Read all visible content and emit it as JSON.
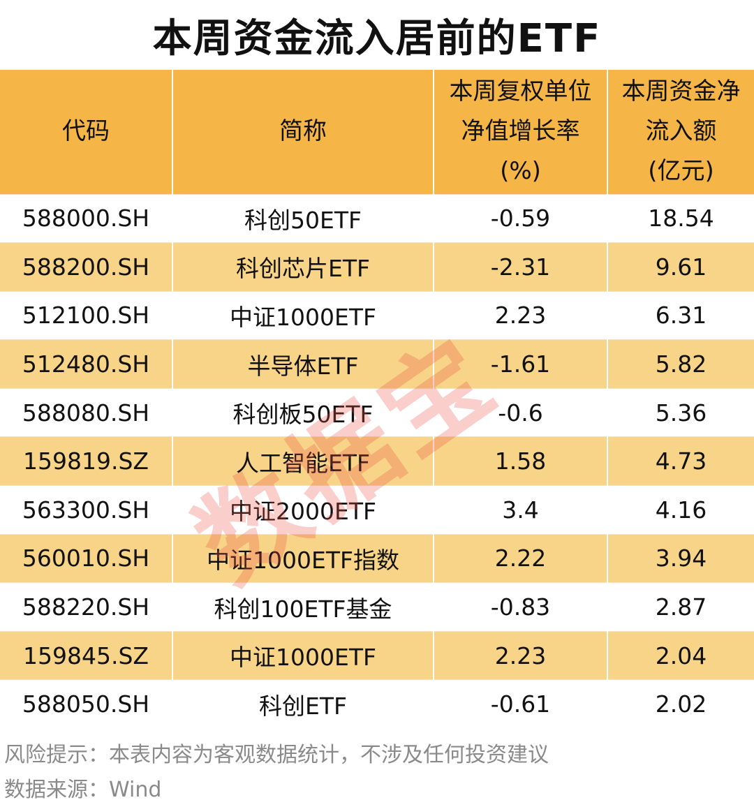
{
  "title": "本周资金流入居前的ETF",
  "watermark": "数据宝",
  "footer": {
    "risk": "风险提示：本表内容为客观数据统计，不涉及任何投资建议",
    "source": "数据来源：Wind"
  },
  "colors": {
    "header_bg": "#f5b647",
    "stripe_bg": "#f8d488",
    "watermark": "#e85046"
  },
  "chart_data": {
    "type": "table",
    "title": "本周资金流入居前的ETF",
    "columns": [
      "代码",
      "简称",
      "本周复权单位净值增长率(%)",
      "本周资金净流入额(亿元)"
    ],
    "header_lines": [
      [
        "代码"
      ],
      [
        "简称"
      ],
      [
        "本周复权单位",
        "净值增长率",
        "(%)"
      ],
      [
        "本周资金净",
        "流入额",
        "(亿元)"
      ]
    ],
    "rows": [
      [
        "588000.SH",
        "科创50ETF",
        "-0.59",
        "18.54"
      ],
      [
        "588200.SH",
        "科创芯片ETF",
        "-2.31",
        "9.61"
      ],
      [
        "512100.SH",
        "中证1000ETF",
        "2.23",
        "6.31"
      ],
      [
        "512480.SH",
        "半导体ETF",
        "-1.61",
        "5.82"
      ],
      [
        "588080.SH",
        "科创板50ETF",
        "-0.6",
        "5.36"
      ],
      [
        "159819.SZ",
        "人工智能ETF",
        "1.58",
        "4.73"
      ],
      [
        "563300.SH",
        "中证2000ETF",
        "3.4",
        "4.16"
      ],
      [
        "560010.SH",
        "中证1000ETF指数",
        "2.22",
        "3.94"
      ],
      [
        "588220.SH",
        "科创100ETF基金",
        "-0.83",
        "2.87"
      ],
      [
        "159845.SZ",
        "中证1000ETF",
        "2.23",
        "2.04"
      ],
      [
        "588050.SH",
        "科创ETF",
        "-0.61",
        "2.02"
      ]
    ]
  }
}
